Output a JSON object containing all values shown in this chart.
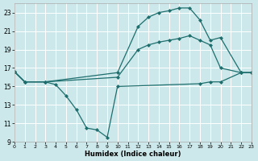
{
  "xlabel": "Humidex (Indice chaleur)",
  "background_color": "#cce8ea",
  "line_color": "#1e6e6e",
  "grid_color": "#ffffff",
  "xlim": [
    0,
    23
  ],
  "ylim": [
    9,
    24
  ],
  "xticks": [
    0,
    1,
    2,
    3,
    4,
    5,
    6,
    7,
    8,
    9,
    10,
    11,
    12,
    13,
    14,
    15,
    16,
    17,
    18,
    19,
    20,
    21,
    22,
    23
  ],
  "yticks": [
    9,
    11,
    13,
    15,
    17,
    19,
    21,
    23
  ],
  "line1_x": [
    0,
    1,
    3,
    10,
    12,
    13,
    14,
    15,
    16,
    17,
    18,
    19,
    20,
    22,
    23
  ],
  "line1_y": [
    16.6,
    15.5,
    15.5,
    16.5,
    21.5,
    22.5,
    23.0,
    23.2,
    23.5,
    23.5,
    22.2,
    20.0,
    20.3,
    16.5,
    16.5
  ],
  "line2_x": [
    0,
    1,
    3,
    4,
    5,
    6,
    7,
    8,
    9,
    10,
    18,
    19,
    20,
    22,
    23
  ],
  "line2_y": [
    16.6,
    15.5,
    15.5,
    15.2,
    14.0,
    12.5,
    10.5,
    10.3,
    9.5,
    15.0,
    15.3,
    15.5,
    15.5,
    16.5,
    16.5
  ],
  "line3_x": [
    0,
    1,
    3,
    10,
    12,
    13,
    14,
    15,
    16,
    17,
    18,
    19,
    20,
    22,
    23
  ],
  "line3_y": [
    16.6,
    15.5,
    15.5,
    16.0,
    19.0,
    19.5,
    19.8,
    20.0,
    20.2,
    20.5,
    20.0,
    19.5,
    17.0,
    16.5,
    16.5
  ]
}
